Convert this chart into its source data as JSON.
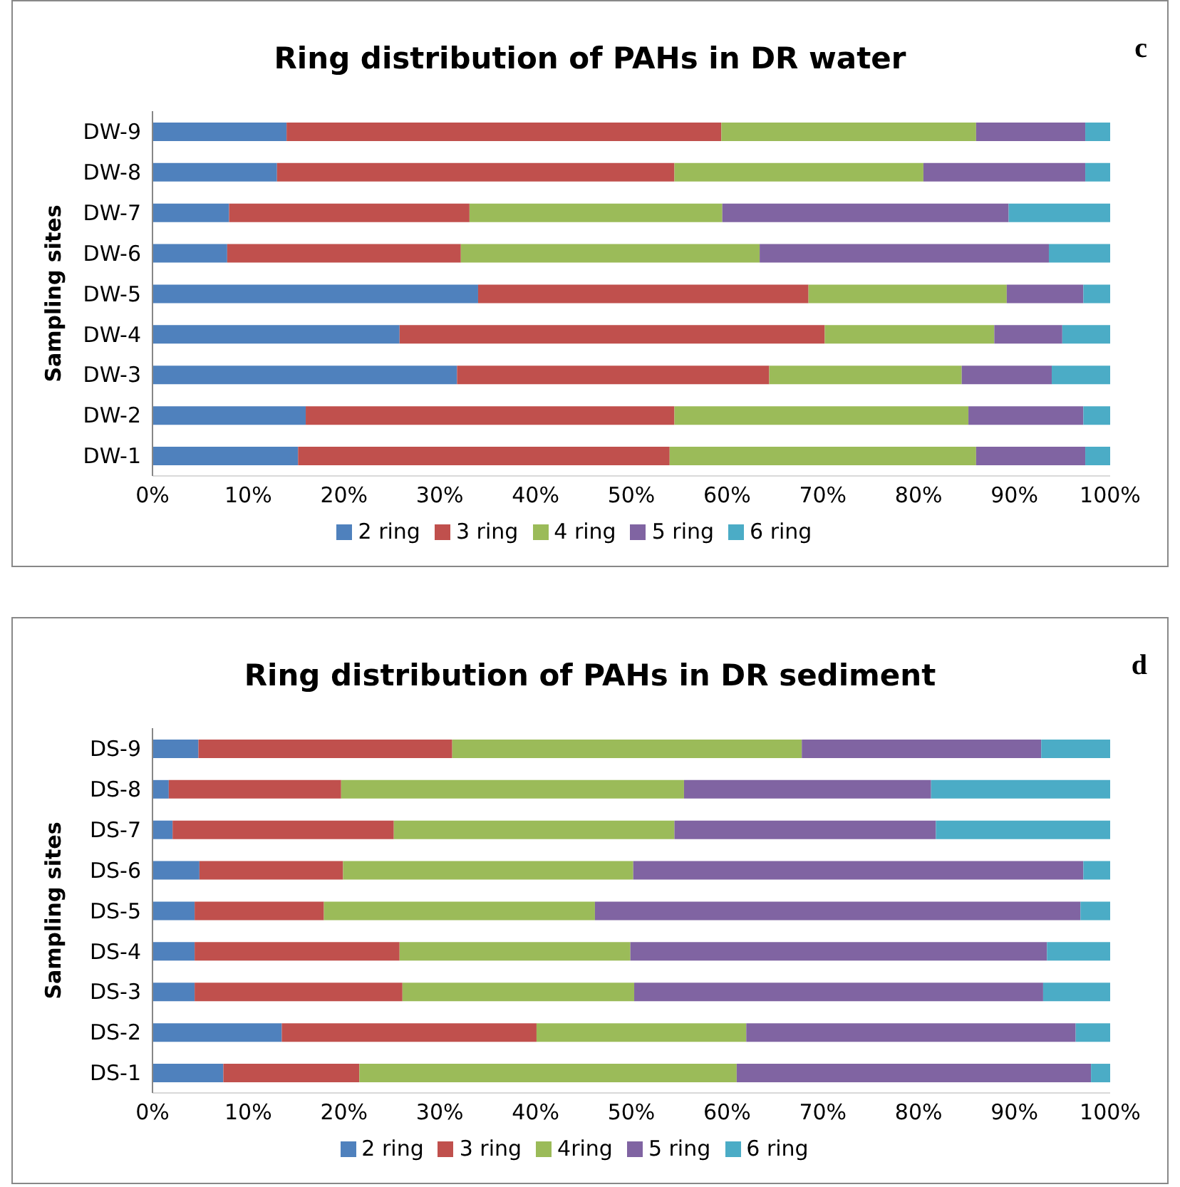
{
  "chart_data": [
    {
      "type": "bar",
      "orientation": "horizontal",
      "stacked": true,
      "title": "Ring distribution of PAHs in DR water",
      "ylabel": "Sampling sites",
      "annotations": [
        "c"
      ],
      "categories": [
        "DW-9",
        "DW-8",
        "DW-7",
        "DW-6",
        "DW-5",
        "DW-4",
        "DW-3",
        "DW-2",
        "DW-1"
      ],
      "series": [
        {
          "name": "2 ring",
          "color": "#4f81bd",
          "values": [
            14,
            13,
            8,
            7.8,
            34,
            25.8,
            31.8,
            16,
            15.2
          ]
        },
        {
          "name": "3 ring",
          "color": "#c0504d",
          "values": [
            45.4,
            41.5,
            25.1,
            24.4,
            34.5,
            44.4,
            32.6,
            38.5,
            38.8
          ]
        },
        {
          "name": "4 ring",
          "color": "#9bbb59",
          "values": [
            26.6,
            26,
            26.4,
            31.2,
            20.7,
            17.7,
            20.1,
            30.7,
            32
          ]
        },
        {
          "name": "5 ring",
          "color": "#8064a2",
          "values": [
            11.4,
            16.9,
            29.9,
            30.2,
            8,
            7.1,
            9.4,
            12,
            11.4
          ]
        },
        {
          "name": "6 ring",
          "color": "#4bacc6",
          "values": [
            2.6,
            2.6,
            10.6,
            6.4,
            2.8,
            5,
            6.1,
            2.8,
            2.6
          ]
        }
      ],
      "xlim": [
        0,
        100
      ],
      "xticks": [
        {
          "value": 0,
          "label": "0%"
        },
        {
          "value": 10,
          "label": "10%"
        },
        {
          "value": 20,
          "label": "20%"
        },
        {
          "value": 30,
          "label": "30%"
        },
        {
          "value": 40,
          "label": "40%"
        },
        {
          "value": 50,
          "label": "50%"
        },
        {
          "value": 60,
          "label": "60%"
        },
        {
          "value": 70,
          "label": "70%"
        },
        {
          "value": 80,
          "label": "80%"
        },
        {
          "value": 90,
          "label": "90%"
        },
        {
          "value": 100,
          "label": "100%"
        }
      ],
      "legend": "bottom",
      "grid": false
    },
    {
      "type": "bar",
      "orientation": "horizontal",
      "stacked": true,
      "title": "Ring distribution of PAHs in DR sediment",
      "ylabel": "Sampling sites",
      "annotations": [
        "d"
      ],
      "categories": [
        "DS-9",
        "DS-8",
        "DS-7",
        "DS-6",
        "DS-5",
        "DS-4",
        "DS-3",
        "DS-2",
        "DS-1"
      ],
      "series": [
        {
          "name": "2 ring",
          "color": "#4f81bd",
          "values": [
            4.8,
            1.7,
            2.1,
            4.9,
            4.4,
            4.4,
            4.4,
            13.5,
            7.4
          ]
        },
        {
          "name": "3 ring",
          "color": "#c0504d",
          "values": [
            26.5,
            18,
            23.1,
            15,
            13.5,
            21.4,
            21.7,
            26.6,
            14.2
          ]
        },
        {
          "name": "4ring",
          "color": "#9bbb59",
          "values": [
            36.5,
            35.8,
            29.3,
            30.3,
            28.3,
            24.1,
            24.2,
            21.9,
            39.4
          ]
        },
        {
          "name": "5 ring",
          "color": "#8064a2",
          "values": [
            25,
            25.8,
            27.3,
            47,
            50.7,
            43.5,
            42.7,
            34.4,
            37
          ]
        },
        {
          "name": "6 ring",
          "color": "#4bacc6",
          "values": [
            7.2,
            18.7,
            18.2,
            2.8,
            3.1,
            6.6,
            7,
            3.6,
            2
          ]
        }
      ],
      "xlim": [
        0,
        100
      ],
      "xticks": [
        {
          "value": 0,
          "label": "0%"
        },
        {
          "value": 10,
          "label": "10%"
        },
        {
          "value": 20,
          "label": "20%"
        },
        {
          "value": 30,
          "label": "30%"
        },
        {
          "value": 40,
          "label": "40%"
        },
        {
          "value": 50,
          "label": "50%"
        },
        {
          "value": 60,
          "label": "60%"
        },
        {
          "value": 70,
          "label": "70%"
        },
        {
          "value": 80,
          "label": "80%"
        },
        {
          "value": 90,
          "label": "90%"
        },
        {
          "value": 100,
          "label": "100%"
        }
      ],
      "legend": "bottom",
      "grid": false
    }
  ]
}
